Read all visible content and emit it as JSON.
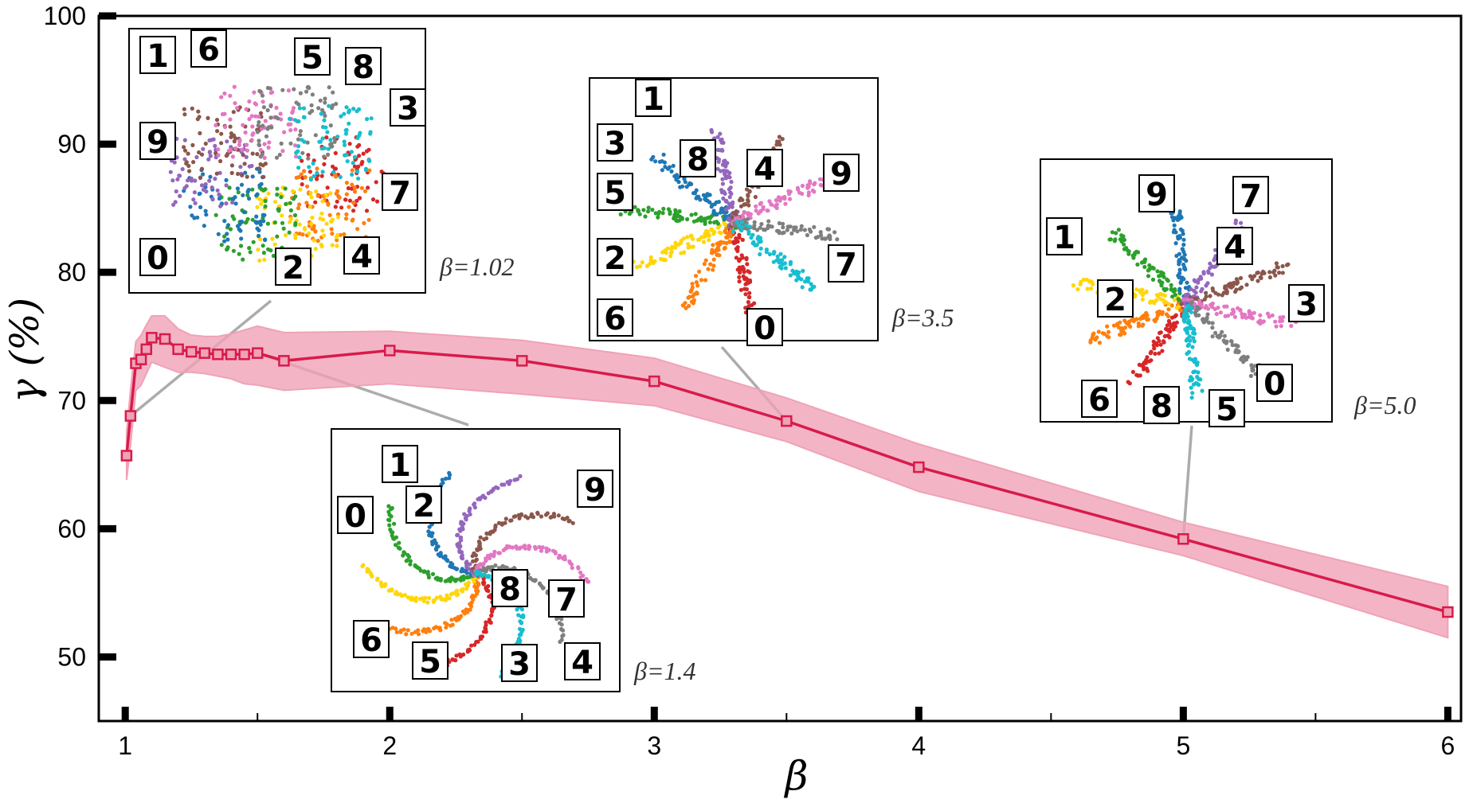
{
  "chart_data": {
    "type": "line",
    "xlabel": "β",
    "ylabel": "γ (%)",
    "xlim": [
      0.9,
      6.05
    ],
    "ylim": [
      45,
      100
    ],
    "xticks": [
      "1",
      "2",
      "3",
      "4",
      "5",
      "6"
    ],
    "yticks": [
      "50",
      "60",
      "70",
      "80",
      "90",
      "100"
    ],
    "grid": false,
    "line_color": "#d81b4a",
    "band_color": "#f0a2b6",
    "series": [
      {
        "x": [
          1.005,
          1.02,
          1.04,
          1.06,
          1.08,
          1.1,
          1.15,
          1.2,
          1.25,
          1.3,
          1.35,
          1.4,
          1.45,
          1.5,
          1.6,
          2.0,
          2.5,
          3.0,
          3.5,
          4.0,
          5.0,
          6.0
        ],
        "y": [
          65.7,
          68.8,
          72.9,
          73.2,
          74.0,
          74.9,
          74.8,
          74.0,
          73.8,
          73.7,
          73.6,
          73.6,
          73.6,
          73.7,
          73.1,
          73.9,
          73.1,
          71.5,
          68.4,
          64.8,
          59.2,
          53.5
        ],
        "lower": [
          63.8,
          66.5,
          70.8,
          71.2,
          72.1,
          73.0,
          72.6,
          72.2,
          72.2,
          72.1,
          71.9,
          71.7,
          71.3,
          71.2,
          70.8,
          71.3,
          70.5,
          69.6,
          66.8,
          62.9,
          57.9,
          51.5
        ],
        "upper": [
          67.5,
          70.8,
          74.6,
          75.1,
          75.9,
          76.6,
          76.6,
          75.6,
          75.1,
          75.0,
          75.0,
          75.2,
          75.5,
          75.8,
          75.3,
          75.4,
          74.7,
          73.3,
          70.2,
          66.6,
          60.5,
          55.5
        ]
      }
    ],
    "annotations": [
      {
        "label": "β=1.02",
        "x": 1.02,
        "y": 68.8,
        "digits": [
          "1",
          "6",
          "5",
          "8",
          "3",
          "9",
          "7",
          "0",
          "2",
          "4"
        ]
      },
      {
        "label": "β=1.4",
        "x": 1.5,
        "y": 73.7,
        "digits": [
          "1",
          "2",
          "0",
          "9",
          "8",
          "7",
          "6",
          "5",
          "3",
          "4"
        ]
      },
      {
        "label": "β=3.5",
        "x": 3.5,
        "y": 68.4,
        "digits": [
          "1",
          "3",
          "8",
          "4",
          "9",
          "5",
          "2",
          "7",
          "6",
          "0"
        ]
      },
      {
        "label": "β=5.0",
        "x": 5.0,
        "y": 59.2,
        "digits": [
          "9",
          "7",
          "1",
          "4",
          "2",
          "3",
          "6",
          "8",
          "5",
          "0"
        ]
      }
    ]
  }
}
